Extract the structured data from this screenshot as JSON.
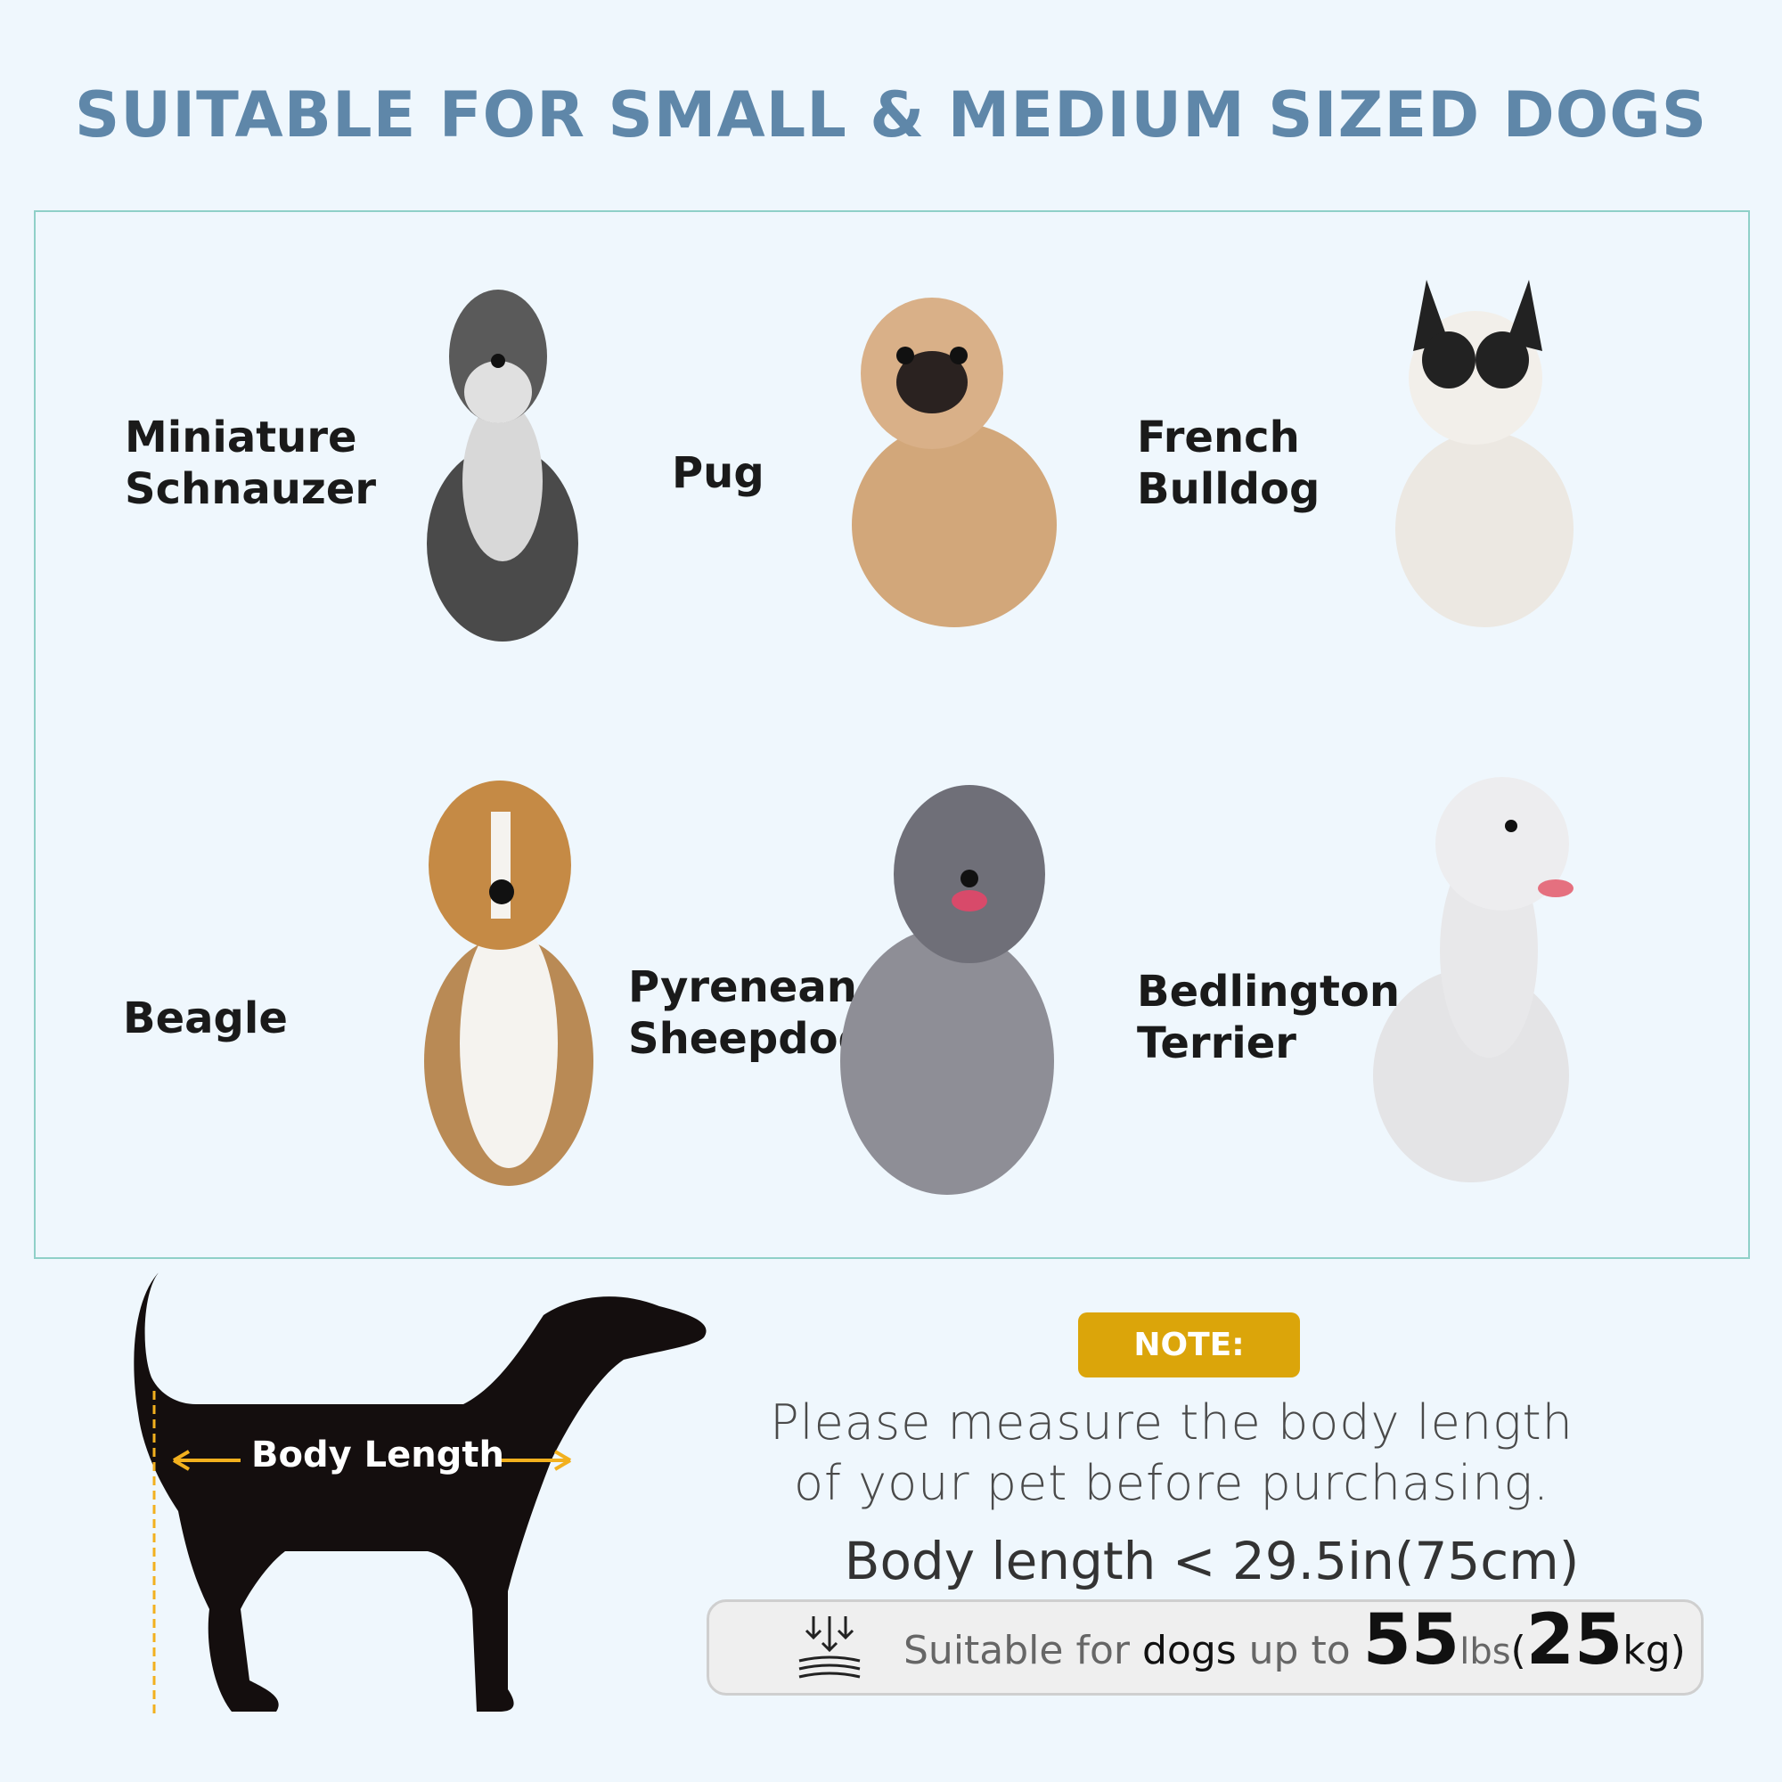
{
  "title": "SUITABLE FOR SMALL & MEDIUM SIZED DOGS",
  "breeds": [
    {
      "line1": "Miniature",
      "line2": "Schnauzer"
    },
    {
      "line1": "Pug",
      "line2": ""
    },
    {
      "line1": "French",
      "line2": "Bulldog"
    },
    {
      "line1": "Beagle",
      "line2": ""
    },
    {
      "line1": "Pyrenean",
      "line2": "Sheepdog"
    },
    {
      "line1": "Bedlington",
      "line2": "Terrier"
    }
  ],
  "diagram": {
    "body_length_label": "Body Length",
    "arrow_color": "#f2b01e"
  },
  "note": {
    "badge": "NOTE:",
    "line1": "Please measure the body length",
    "line2": "of your pet before purchasing.",
    "body_length": "Body length < 29.5in(75cm)",
    "capacity": {
      "prefix": "Suitable for",
      "dogs": "dogs",
      "upto": "up to",
      "lbs_value": "55",
      "lbs_unit": "lbs",
      "open": "(",
      "kg_value": "25",
      "kg_unit": "kg)",
      "icon": "weight-load-icon"
    }
  },
  "colors": {
    "title": "#5f87a9",
    "panel_border": "#8fd0c8",
    "note_badge": "#dba50a",
    "background": "#eff7fd"
  }
}
